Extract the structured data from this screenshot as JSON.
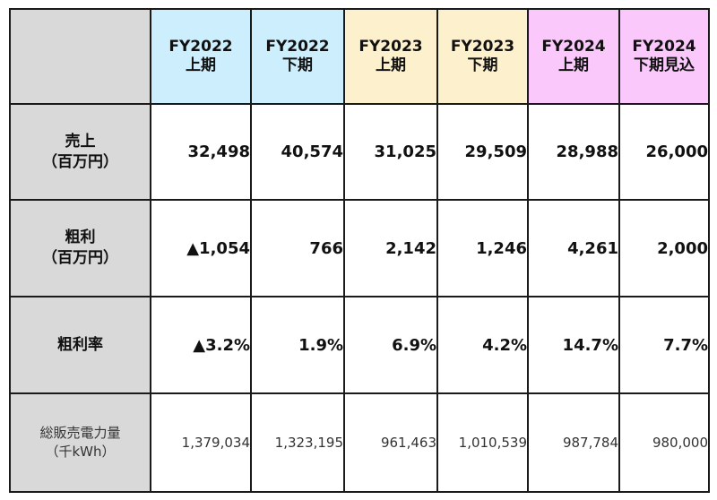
{
  "table": {
    "columns": [
      {
        "line1": "FY2022",
        "line2": "上期"
      },
      {
        "line1": "FY2022",
        "line2": "下期"
      },
      {
        "line1": "FY2023",
        "line2": "上期"
      },
      {
        "line1": "FY2023",
        "line2": "下期"
      },
      {
        "line1": "FY2024",
        "line2": "上期"
      },
      {
        "line1": "FY2024",
        "line2": "下期見込"
      }
    ],
    "header_colors": {
      "corner": "#d9d9d9",
      "fy2022": "#cdeefc",
      "fy2023": "#fdf0cc",
      "fy2024": "#fbc8fb"
    },
    "rows": [
      {
        "label_line1": "売上",
        "label_line2": "（百万円）",
        "values": [
          "32,498",
          "40,574",
          "31,025",
          "29,509",
          "28,988",
          "26,000"
        ]
      },
      {
        "label_line1": "粗利",
        "label_line2": "（百万円）",
        "values": [
          "▲1,054",
          "766",
          "2,142",
          "1,246",
          "4,261",
          "2,000"
        ]
      },
      {
        "label_line1": "粗利率",
        "values": [
          "▲3.2%",
          "1.9%",
          "6.9%",
          "4.2%",
          "14.7%",
          "7.7%"
        ]
      },
      {
        "label_line1": "総販売電力量",
        "label_line2": "（千kWh）",
        "values": [
          "1,379,034",
          "1,323,195",
          "961,463",
          "1,010,539",
          "987,784",
          "980,000"
        ]
      }
    ]
  }
}
